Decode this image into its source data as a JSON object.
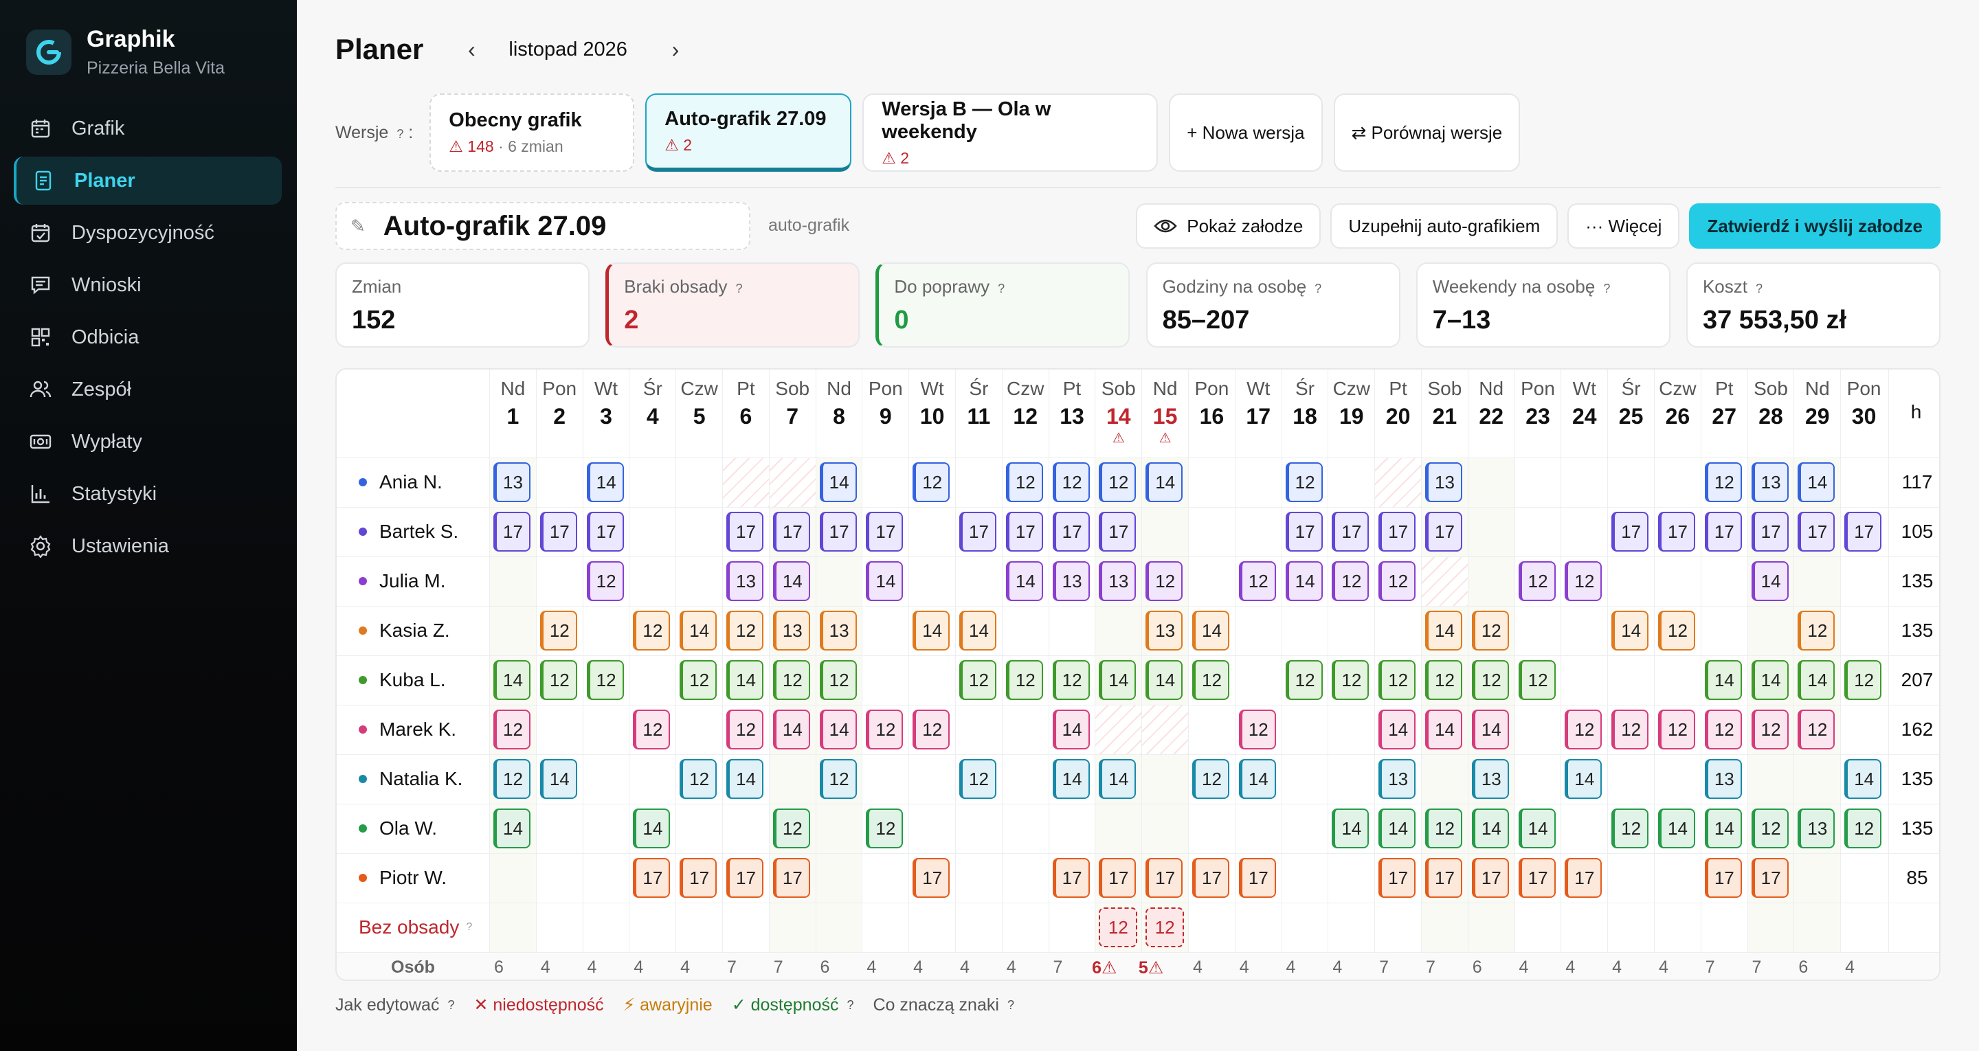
{
  "app": {
    "name": "Graphik",
    "subtitle": "Pizzeria Bella Vita"
  },
  "nav": [
    {
      "label": "Grafik",
      "icon": "calendar-icon"
    },
    {
      "label": "Planer",
      "icon": "document-icon",
      "active": true
    },
    {
      "label": "Dyspozycyjność",
      "icon": "calendar-check-icon"
    },
    {
      "label": "Wnioski",
      "icon": "message-icon"
    },
    {
      "label": "Odbicia",
      "icon": "qr-icon"
    },
    {
      "label": "Zespół",
      "icon": "users-icon"
    },
    {
      "label": "Wypłaty",
      "icon": "money-icon"
    },
    {
      "label": "Statystyki",
      "icon": "bar-chart-icon"
    },
    {
      "label": "Ustawienia",
      "icon": "gear-icon"
    }
  ],
  "header": {
    "title": "Planer",
    "prev": "‹",
    "next": "›",
    "month": "listopad 2026"
  },
  "versions": {
    "label": "Wersje",
    "help": "?",
    "items": [
      {
        "title": "Obecny grafik",
        "warn": "⚠ 148",
        "extra": "· 6 zmian"
      },
      {
        "title": "Auto-grafik 27.09",
        "warn": "⚠ 2",
        "extra": ""
      },
      {
        "title": "Wersja B — Ola w weekendy",
        "warn": "⚠ 2",
        "extra": ""
      }
    ],
    "new": "+ Nowa wersja",
    "compare": "⇄ Porównaj wersje"
  },
  "draft": {
    "pen": "✎",
    "name": "Auto-grafik 27.09",
    "type": "auto-grafik"
  },
  "actions": {
    "show": "Pokaż załodze",
    "fill": "Uzupełnij auto-grafikiem",
    "more": "··· Więcej",
    "approve": "Zatwierdź i wyślij załodze"
  },
  "stats": [
    {
      "label": "Zmian",
      "value": "152",
      "kind": "plain",
      "help": ""
    },
    {
      "label": "Braki obsady",
      "value": "2",
      "kind": "err",
      "help": "?"
    },
    {
      "label": "Do poprawy",
      "value": "0",
      "kind": "ok",
      "help": "?"
    },
    {
      "label": "Godziny na osobę",
      "value": "85–207",
      "kind": "plain",
      "help": "?"
    },
    {
      "label": "Weekendy na osobę",
      "value": "7–13",
      "kind": "plain",
      "help": "?"
    },
    {
      "label": "Koszt",
      "value": "37 553,50 zł",
      "kind": "plain",
      "help": "?"
    }
  ],
  "grid": {
    "hours_header": "h",
    "days": [
      {
        "n": "Nd",
        "d": "1"
      },
      {
        "n": "Pon",
        "d": "2"
      },
      {
        "n": "Wt",
        "d": "3"
      },
      {
        "n": "Śr",
        "d": "4"
      },
      {
        "n": "Czw",
        "d": "5"
      },
      {
        "n": "Pt",
        "d": "6"
      },
      {
        "n": "Sob",
        "d": "7"
      },
      {
        "n": "Nd",
        "d": "8"
      },
      {
        "n": "Pon",
        "d": "9"
      },
      {
        "n": "Wt",
        "d": "10"
      },
      {
        "n": "Śr",
        "d": "11"
      },
      {
        "n": "Czw",
        "d": "12"
      },
      {
        "n": "Pt",
        "d": "13"
      },
      {
        "n": "Sob",
        "d": "14",
        "warn": true
      },
      {
        "n": "Nd",
        "d": "15",
        "warn": true
      },
      {
        "n": "Pon",
        "d": "16"
      },
      {
        "n": "Wt",
        "d": "17"
      },
      {
        "n": "Śr",
        "d": "18"
      },
      {
        "n": "Czw",
        "d": "19"
      },
      {
        "n": "Pt",
        "d": "20"
      },
      {
        "n": "Sob",
        "d": "21"
      },
      {
        "n": "Nd",
        "d": "22"
      },
      {
        "n": "Pon",
        "d": "23"
      },
      {
        "n": "Wt",
        "d": "24"
      },
      {
        "n": "Śr",
        "d": "25"
      },
      {
        "n": "Czw",
        "d": "26"
      },
      {
        "n": "Pt",
        "d": "27"
      },
      {
        "n": "Sob",
        "d": "28"
      },
      {
        "n": "Nd",
        "d": "29"
      },
      {
        "n": "Pon",
        "d": "30"
      }
    ],
    "rows": [
      {
        "name": "Ania N.",
        "color": "#3563e0",
        "bg": "#e7eeff",
        "hours": "117",
        "cells": [
          "13",
          "",
          "14",
          "",
          "",
          "x",
          "x",
          "14",
          "",
          "12",
          "",
          "12",
          "12",
          "12",
          "14",
          "",
          "",
          "12",
          "",
          "x",
          "13",
          "",
          "",
          "",
          "",
          "",
          "12",
          "13",
          "14",
          ""
        ]
      },
      {
        "name": "Bartek S.",
        "color": "#6246d6",
        "bg": "#ece8ff",
        "hours": "105",
        "cells": [
          "17",
          "17",
          "17",
          "",
          "",
          "17",
          "17",
          "17",
          "17",
          "",
          "17",
          "17",
          "17",
          "17",
          "",
          "",
          "",
          "17",
          "17",
          "17",
          "17",
          "",
          "",
          "",
          "17",
          "17",
          "17",
          "17",
          "17",
          "17"
        ]
      },
      {
        "name": "Julia M.",
        "color": "#8a3fd0",
        "bg": "#f1e6fb",
        "hours": "135",
        "cells": [
          "",
          "",
          "12",
          "",
          "",
          "13",
          "14",
          "",
          "14",
          "",
          "",
          "14",
          "13",
          "13",
          "12",
          "",
          "12",
          "14",
          "12",
          "12",
          "x",
          "",
          "12",
          "12",
          "",
          "",
          "",
          "14",
          "",
          ""
        ]
      },
      {
        "name": "Kasia Z.",
        "color": "#df7a1e",
        "bg": "#fdeedd",
        "hours": "135",
        "cells": [
          "",
          "12",
          "",
          "12",
          "14",
          "12",
          "13",
          "13",
          "",
          "14",
          "14",
          "",
          "",
          "",
          "13",
          "14",
          "",
          "",
          "",
          "",
          "14",
          "12",
          "",
          "",
          "14",
          "12",
          "",
          "",
          "12",
          ""
        ]
      },
      {
        "name": "Kuba L.",
        "color": "#3f9a2c",
        "bg": "#e5f4e0",
        "hours": "207",
        "cells": [
          "14",
          "12",
          "12",
          "",
          "12",
          "14",
          "12",
          "12",
          "",
          "",
          "12",
          "12",
          "12",
          "14",
          "14",
          "12",
          "",
          "12",
          "12",
          "12",
          "12",
          "12",
          "12",
          "",
          "",
          "",
          "14",
          "14",
          "14",
          "12"
        ]
      },
      {
        "name": "Marek K.",
        "color": "#d63c7c",
        "bg": "#fbe5ef",
        "hours": "162",
        "cells": [
          "12",
          "",
          "",
          "12",
          "",
          "12",
          "14",
          "14",
          "12",
          "12",
          "",
          "",
          "14",
          "x",
          "x",
          "",
          "12",
          "",
          "",
          "14",
          "14",
          "14",
          "",
          "12",
          "12",
          "12",
          "12",
          "12",
          "12",
          ""
        ]
      },
      {
        "name": "Natalia K.",
        "color": "#1989a8",
        "bg": "#e0f2f7",
        "hours": "135",
        "cells": [
          "12",
          "14",
          "",
          "",
          "12",
          "14",
          "",
          "12",
          "",
          "",
          "12",
          "",
          "14",
          "14",
          "",
          "12",
          "14",
          "",
          "",
          "13",
          "",
          "13",
          "",
          "14",
          "",
          "",
          "13",
          "",
          "",
          "14"
        ]
      },
      {
        "name": "Ola W.",
        "color": "#249c48",
        "bg": "#e1f3e6",
        "hours": "135",
        "cells": [
          "14",
          "",
          "",
          "14",
          "",
          "",
          "12",
          "",
          "12",
          "",
          "",
          "",
          "",
          "",
          "",
          "",
          "",
          "",
          "14",
          "14",
          "12",
          "14",
          "14",
          "",
          "12",
          "14",
          "14",
          "12",
          "13",
          "12"
        ]
      },
      {
        "name": "Piotr W.",
        "color": "#e35c1c",
        "bg": "#fde8dc",
        "hours": "85",
        "cells": [
          "",
          "",
          "",
          "17",
          "17",
          "17",
          "17",
          "",
          "",
          "17",
          "",
          "",
          "17",
          "17",
          "17",
          "17",
          "17",
          "",
          "",
          "17",
          "17",
          "17",
          "17",
          "17",
          "",
          "",
          "17",
          "17",
          "",
          ""
        ]
      }
    ],
    "unstaffed": {
      "label": "Bez obsady",
      "help": "?",
      "cells": {
        "13": "12",
        "14": "12"
      }
    },
    "count_label": "Osób",
    "counts": [
      "6",
      "4",
      "4",
      "4",
      "4",
      "7",
      "7",
      "6",
      "4",
      "4",
      "4",
      "4",
      "7",
      "6⚠",
      "5⚠",
      "4",
      "4",
      "4",
      "4",
      "7",
      "7",
      "6",
      "4",
      "4",
      "4",
      "4",
      "7",
      "7",
      "6",
      "4"
    ]
  },
  "legend": {
    "edit": "Jak edytować",
    "help": "?",
    "unavail": "✕ niedostępność",
    "emerg": "⚡ awaryjnie",
    "avail": "✓ dostępność",
    "signs": "Co znaczą znaki"
  }
}
